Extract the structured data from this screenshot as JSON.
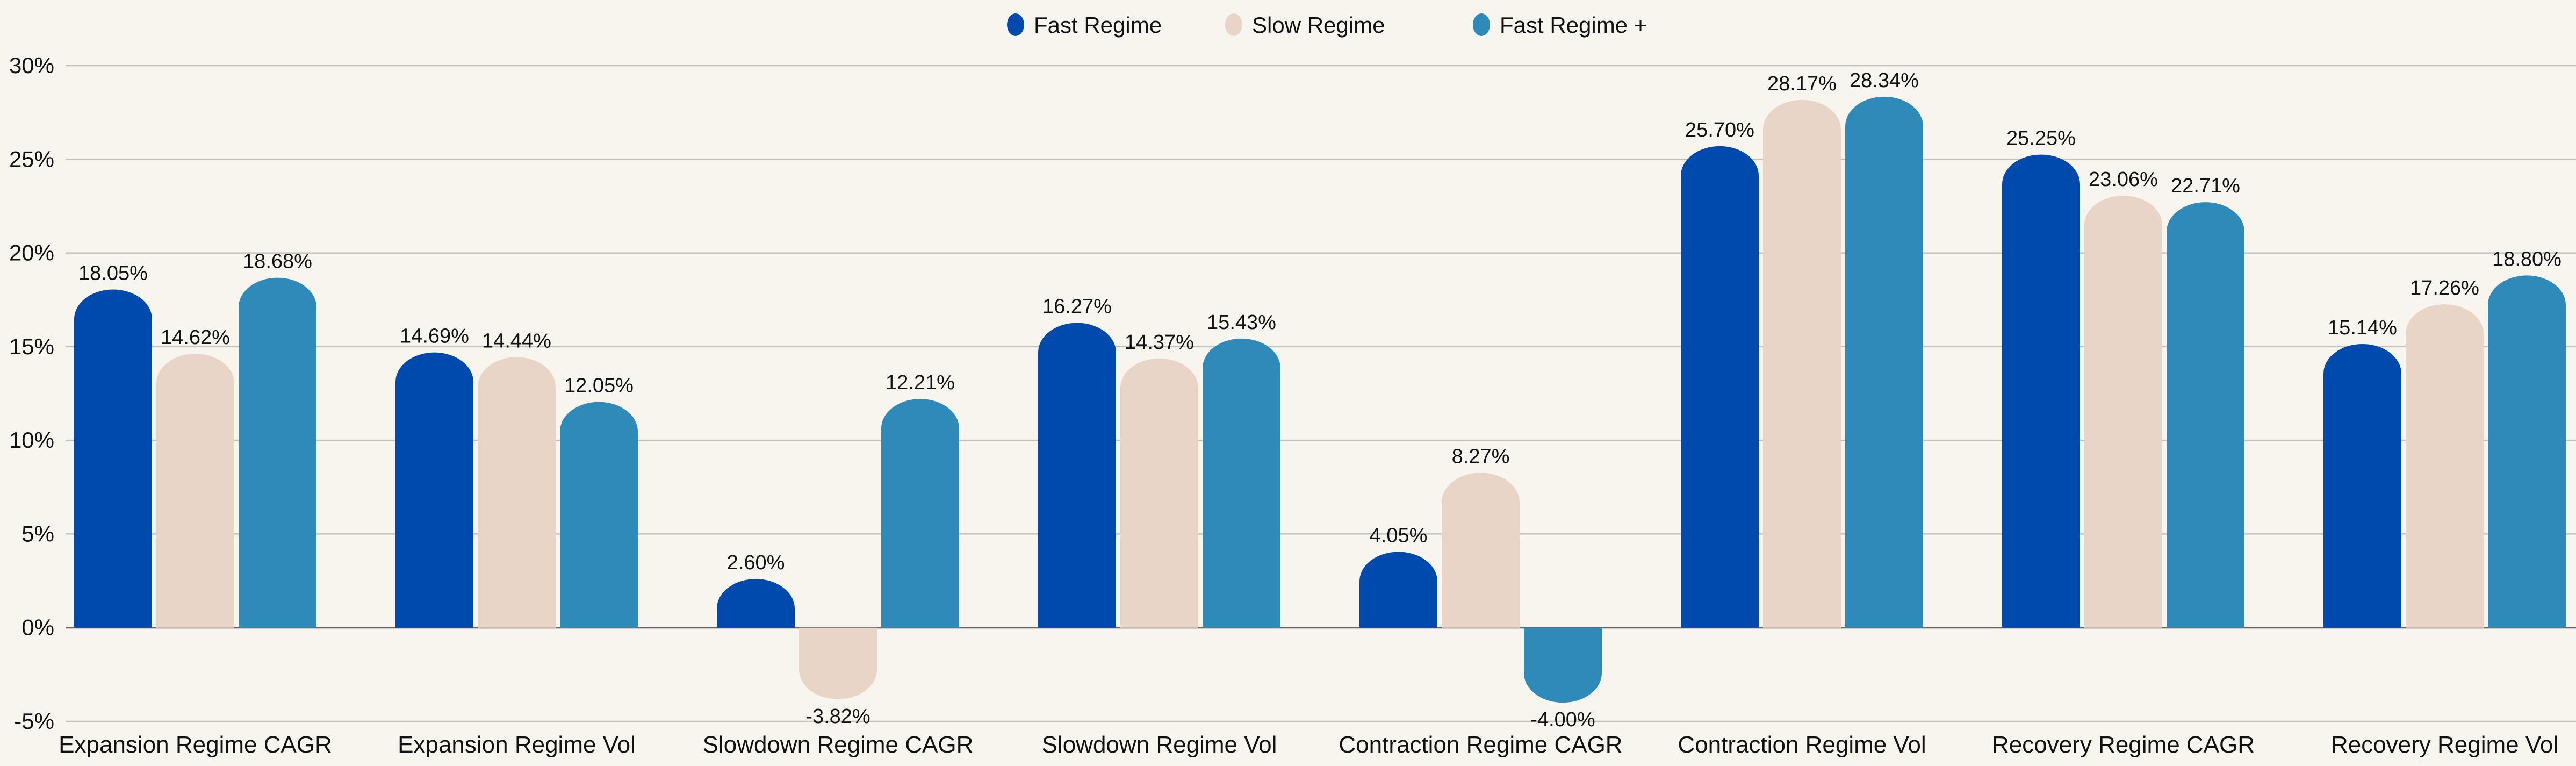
{
  "chart_data": {
    "type": "bar",
    "title": "",
    "xlabel": "",
    "ylabel": "",
    "ylim": [
      -5,
      30
    ],
    "yticks": [
      -5,
      0,
      5,
      10,
      15,
      20,
      25,
      30
    ],
    "ytick_labels": [
      "-5%",
      "0%",
      "5%",
      "10%",
      "15%",
      "20%",
      "25%",
      "30%"
    ],
    "grid": true,
    "legend_position": "top-center",
    "categories": [
      "Expansion Regime CAGR",
      "Expansion Regime Vol",
      "Slowdown Regime CAGR",
      "Slowdown Regime Vol",
      "Contraction Regime CAGR",
      "Contraction Regime Vol",
      "Recovery Regime CAGR",
      "Recovery Regime Vol"
    ],
    "series": [
      {
        "name": "Fast Regime",
        "color": "#004AAD",
        "values": [
          18.05,
          14.69,
          2.6,
          16.27,
          4.05,
          25.7,
          25.25,
          15.14
        ],
        "labels": [
          "18.05%",
          "14.69%",
          "2.60%",
          "16.27%",
          "4.05%",
          "25.70%",
          "25.25%",
          "15.14%"
        ]
      },
      {
        "name": "Slow Regime",
        "color": "#E9D5C8",
        "values": [
          14.62,
          14.44,
          -3.82,
          14.37,
          8.27,
          28.17,
          23.06,
          17.26
        ],
        "labels": [
          "14.62%",
          "14.44%",
          "-3.82%",
          "14.37%",
          "8.27%",
          "28.17%",
          "23.06%",
          "17.26%"
        ]
      },
      {
        "name": "Fast Regime +",
        "color": "#2E8AB8",
        "values": [
          18.68,
          12.05,
          12.21,
          15.43,
          -4.0,
          28.34,
          22.71,
          18.8
        ],
        "labels": [
          "18.68%",
          "12.05%",
          "12.21%",
          "15.43%",
          "-4.00%",
          "28.34%",
          "22.71%",
          "18.80%"
        ]
      }
    ]
  }
}
